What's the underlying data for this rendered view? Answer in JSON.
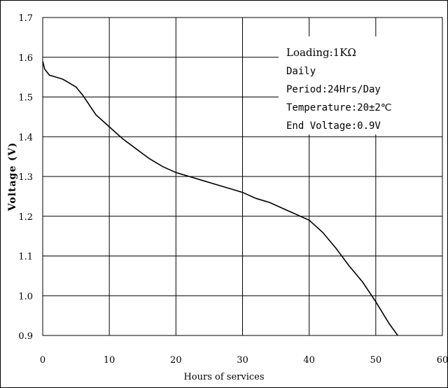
{
  "chart_data": {
    "type": "line",
    "xlabel": "Hours of services",
    "ylabel": "Voltage (V)",
    "xlim": [
      0,
      60
    ],
    "ylim": [
      0.9,
      1.7
    ],
    "x_ticks": [
      "0",
      "10",
      "20",
      "30",
      "40",
      "50",
      "60"
    ],
    "y_ticks": [
      "0.9",
      "1.0",
      "1.1",
      "1.2",
      "1.3",
      "1.4",
      "1.5",
      "1.6",
      "1.7"
    ],
    "grid": true,
    "annotation": {
      "lines": [
        "Loading:1KΩ",
        "Daily",
        "Period:24Hrs/Day",
        "Temperature:20±2℃",
        "End Voltage:0.9V"
      ],
      "placement": "top-right"
    },
    "series": [
      {
        "x": [
          0,
          0.3,
          1,
          2,
          3,
          4,
          5,
          6,
          7,
          8,
          10,
          12,
          14,
          16,
          18,
          20,
          22,
          24,
          26,
          28,
          30,
          32,
          34,
          36,
          38,
          40,
          42,
          44,
          46,
          48,
          50,
          52,
          53.3
        ],
        "y": [
          1.59,
          1.57,
          1.555,
          1.55,
          1.545,
          1.535,
          1.525,
          1.505,
          1.48,
          1.455,
          1.425,
          1.395,
          1.37,
          1.345,
          1.325,
          1.31,
          1.3,
          1.29,
          1.28,
          1.27,
          1.26,
          1.245,
          1.235,
          1.22,
          1.205,
          1.19,
          1.16,
          1.12,
          1.075,
          1.035,
          0.985,
          0.93,
          0.9
        ]
      }
    ]
  }
}
